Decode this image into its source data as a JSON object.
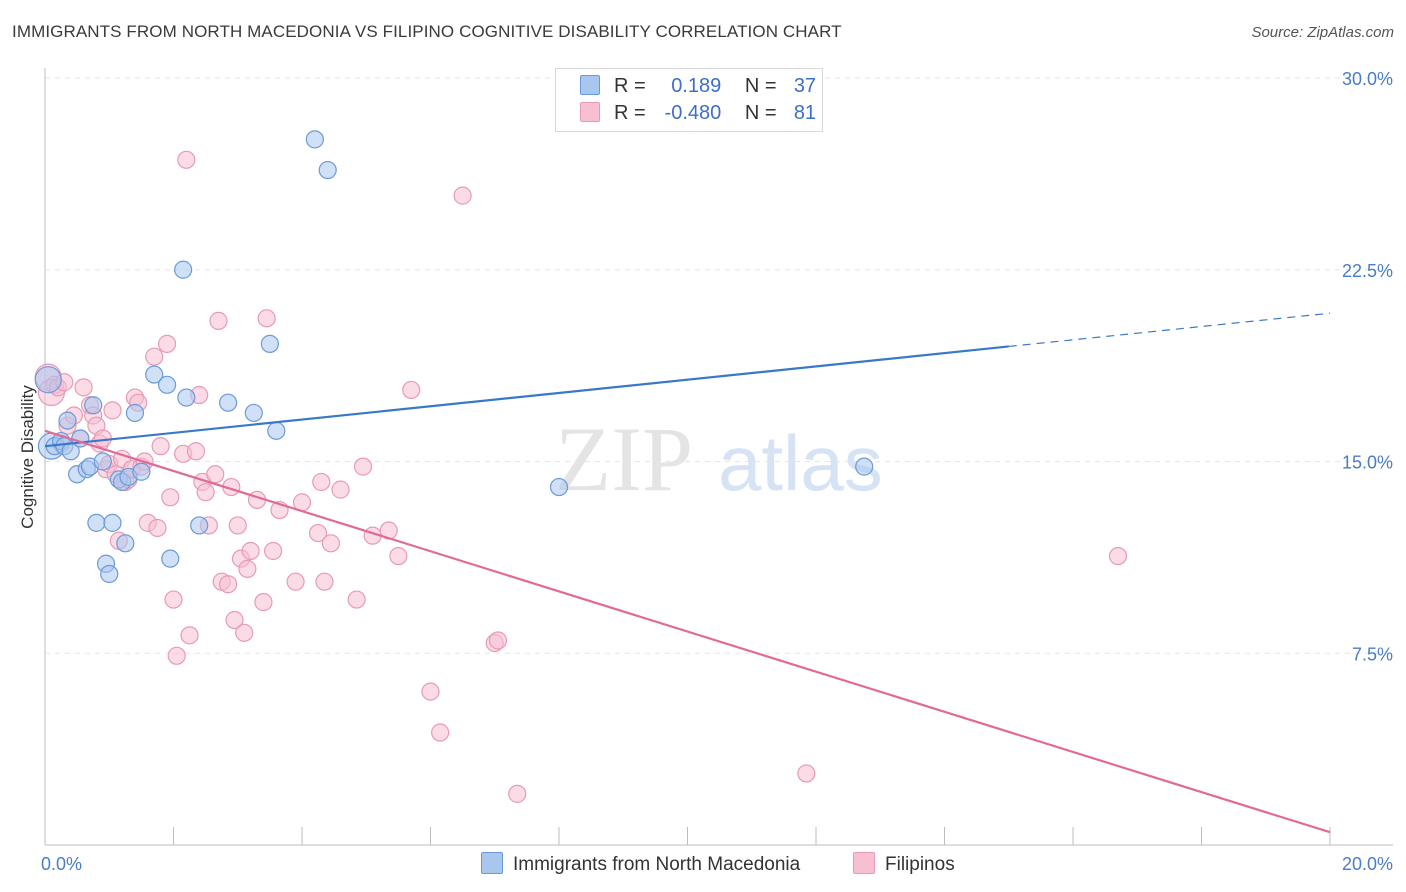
{
  "header": {
    "title": "IMMIGRANTS FROM NORTH MACEDONIA VS FILIPINO COGNITIVE DISABILITY CORRELATION CHART",
    "source": "Source: ZipAtlas.com"
  },
  "legend": {
    "rows": [
      {
        "r_label": "R =",
        "r_value": "0.189",
        "n_label": "N =",
        "n_value": "37",
        "color": "#a9c6ef",
        "border": "#6c9ad8"
      },
      {
        "r_label": "R =",
        "r_value": "-0.480",
        "n_label": "N =",
        "n_value": "81",
        "color": "#f7bfd1",
        "border": "#e89ab5"
      }
    ]
  },
  "bottom_legend": [
    {
      "label": "Immigrants from North Macedonia",
      "color": "#a9c6ef",
      "border": "#6c9ad8"
    },
    {
      "label": "Filipinos",
      "color": "#f7bfd1",
      "border": "#e89ab5"
    }
  ],
  "watermark": {
    "zip": "ZIP",
    "atlas": "atlas"
  },
  "chart_data": {
    "type": "scatter",
    "ylabel": "Cognitive Disability",
    "xlim": [
      0,
      20
    ],
    "ylim": [
      0,
      30
    ],
    "x_tick_labels": [
      "0.0%",
      "20.0%"
    ],
    "y_ticks": [
      7.5,
      15.0,
      22.5,
      30.0
    ],
    "y_tick_labels": [
      "7.5%",
      "15.0%",
      "22.5%",
      "30.0%"
    ],
    "grid": true,
    "series": [
      {
        "name": "Immigrants from North Macedonia",
        "color": "#a9c6ef",
        "stroke": "#6c9ad8",
        "line_color": "#3a78c9",
        "trend": {
          "x0": 0,
          "y0": 15.6,
          "x1": 15.0,
          "y1": 19.5,
          "x_dash_end": 20,
          "y_dash_end": 20.8
        },
        "points": [
          [
            0.05,
            18.2
          ],
          [
            0.1,
            15.6
          ],
          [
            0.15,
            15.6
          ],
          [
            0.25,
            15.8
          ],
          [
            0.3,
            15.6
          ],
          [
            0.35,
            16.6
          ],
          [
            0.4,
            15.4
          ],
          [
            0.5,
            14.5
          ],
          [
            0.55,
            15.9
          ],
          [
            0.65,
            14.7
          ],
          [
            0.7,
            14.8
          ],
          [
            0.75,
            17.2
          ],
          [
            0.8,
            12.6
          ],
          [
            0.9,
            15.0
          ],
          [
            0.95,
            11.0
          ],
          [
            1.0,
            10.6
          ],
          [
            1.05,
            12.6
          ],
          [
            1.15,
            14.3
          ],
          [
            1.2,
            14.2
          ],
          [
            1.25,
            11.8
          ],
          [
            1.3,
            14.4
          ],
          [
            1.4,
            16.9
          ],
          [
            1.5,
            14.6
          ],
          [
            1.7,
            18.4
          ],
          [
            1.9,
            18.0
          ],
          [
            1.95,
            11.2
          ],
          [
            2.15,
            22.5
          ],
          [
            2.2,
            17.5
          ],
          [
            2.4,
            12.5
          ],
          [
            2.85,
            17.3
          ],
          [
            3.25,
            16.9
          ],
          [
            3.5,
            19.6
          ],
          [
            3.6,
            16.2
          ],
          [
            4.2,
            27.6
          ],
          [
            4.4,
            26.4
          ],
          [
            8.0,
            14.0
          ],
          [
            12.75,
            14.8
          ]
        ]
      },
      {
        "name": "Filipinos",
        "color": "#f7bfd1",
        "stroke": "#e89ab5",
        "line_color": "#e06b99",
        "trend": {
          "x0": 0,
          "y0": 16.2,
          "x1": 20,
          "y1": 0.5
        },
        "points": [
          [
            0.05,
            18.3
          ],
          [
            0.1,
            17.7
          ],
          [
            0.15,
            18.0
          ],
          [
            0.25,
            15.7
          ],
          [
            0.35,
            16.4
          ],
          [
            0.45,
            16.8
          ],
          [
            0.55,
            15.9
          ],
          [
            0.6,
            17.9
          ],
          [
            0.7,
            17.2
          ],
          [
            0.75,
            16.8
          ],
          [
            0.8,
            16.4
          ],
          [
            0.85,
            15.7
          ],
          [
            0.95,
            14.7
          ],
          [
            1.0,
            14.9
          ],
          [
            1.05,
            17.0
          ],
          [
            1.1,
            14.5
          ],
          [
            1.15,
            11.9
          ],
          [
            1.2,
            15.1
          ],
          [
            1.25,
            14.2
          ],
          [
            1.3,
            14.3
          ],
          [
            1.35,
            14.7
          ],
          [
            1.4,
            17.5
          ],
          [
            1.45,
            17.3
          ],
          [
            1.5,
            14.8
          ],
          [
            1.6,
            12.6
          ],
          [
            1.7,
            19.1
          ],
          [
            1.75,
            12.4
          ],
          [
            1.8,
            15.6
          ],
          [
            1.9,
            19.6
          ],
          [
            1.95,
            13.6
          ],
          [
            2.0,
            9.6
          ],
          [
            2.05,
            7.4
          ],
          [
            2.15,
            15.3
          ],
          [
            2.2,
            26.8
          ],
          [
            2.25,
            8.2
          ],
          [
            2.35,
            15.4
          ],
          [
            2.4,
            17.6
          ],
          [
            2.45,
            14.2
          ],
          [
            2.5,
            13.8
          ],
          [
            2.55,
            12.5
          ],
          [
            2.65,
            14.5
          ],
          [
            2.7,
            20.5
          ],
          [
            2.75,
            10.3
          ],
          [
            2.85,
            10.2
          ],
          [
            2.95,
            8.8
          ],
          [
            3.0,
            12.5
          ],
          [
            3.05,
            11.2
          ],
          [
            3.1,
            8.3
          ],
          [
            3.15,
            10.8
          ],
          [
            3.2,
            11.5
          ],
          [
            3.3,
            13.5
          ],
          [
            3.4,
            9.5
          ],
          [
            3.45,
            20.6
          ],
          [
            3.55,
            11.5
          ],
          [
            3.65,
            13.1
          ],
          [
            3.9,
            10.3
          ],
          [
            4.0,
            13.4
          ],
          [
            4.25,
            12.2
          ],
          [
            4.3,
            14.2
          ],
          [
            4.35,
            10.3
          ],
          [
            4.45,
            11.8
          ],
          [
            4.6,
            13.9
          ],
          [
            4.85,
            9.6
          ],
          [
            4.95,
            14.8
          ],
          [
            5.1,
            12.1
          ],
          [
            5.35,
            12.3
          ],
          [
            5.5,
            11.3
          ],
          [
            5.7,
            17.8
          ],
          [
            6.0,
            6.0
          ],
          [
            6.15,
            4.4
          ],
          [
            6.5,
            25.4
          ],
          [
            7.0,
            7.9
          ],
          [
            7.05,
            8.0
          ],
          [
            7.35,
            2.0
          ],
          [
            11.85,
            2.8
          ],
          [
            16.7,
            11.3
          ],
          [
            0.2,
            17.9
          ],
          [
            0.3,
            18.1
          ],
          [
            0.9,
            15.9
          ],
          [
            1.55,
            15.0
          ],
          [
            2.9,
            14.0
          ]
        ]
      }
    ]
  }
}
